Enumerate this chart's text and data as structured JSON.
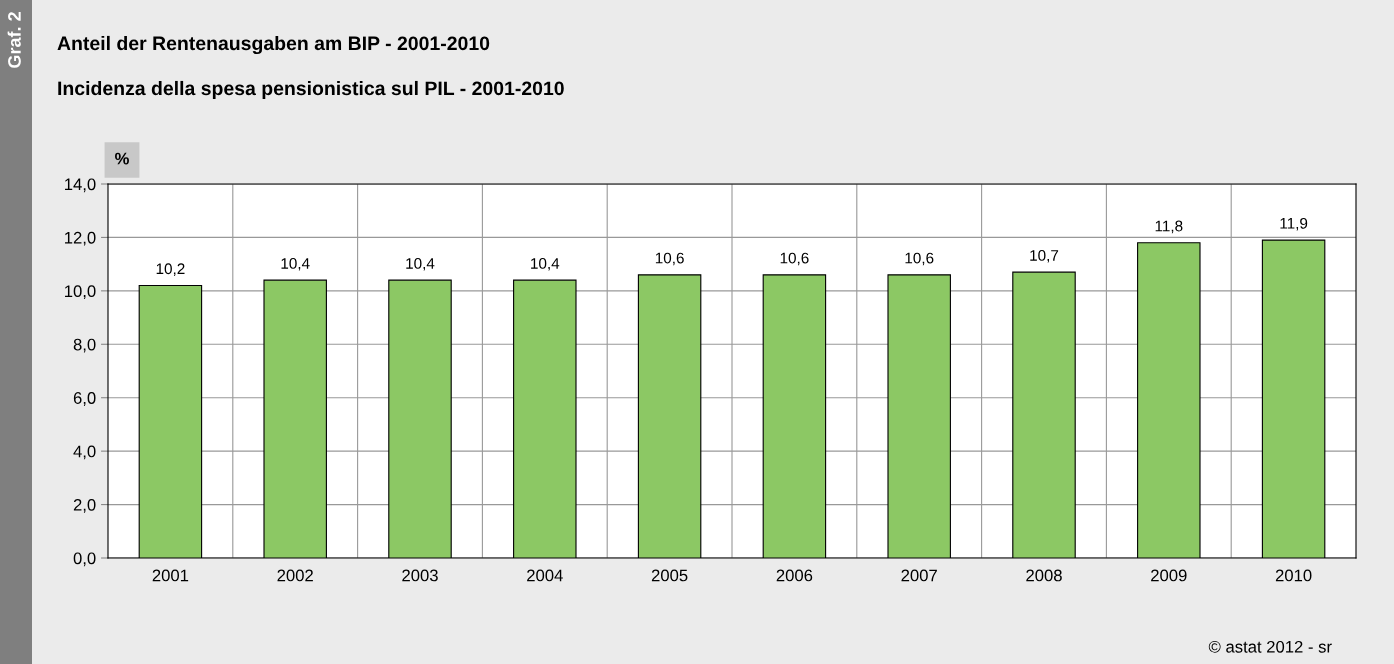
{
  "chart_data": {
    "type": "bar",
    "title": "Anteil der Rentenausgaben am BIP - 2001-2010",
    "subtitle": "Incidenza della spesa pensionistica sul PIL - 2001-2010",
    "ylabel": "%",
    "categories": [
      "2001",
      "2002",
      "2003",
      "2004",
      "2005",
      "2006",
      "2007",
      "2008",
      "2009",
      "2010"
    ],
    "values": [
      10.2,
      10.4,
      10.4,
      10.4,
      10.6,
      10.6,
      10.6,
      10.7,
      11.8,
      11.9
    ],
    "value_labels": [
      "10,2",
      "10,4",
      "10,4",
      "10,4",
      "10,6",
      "10,6",
      "10,6",
      "10,7",
      "11,8",
      "11,9"
    ],
    "color": "#8cc864",
    "ylim": [
      0,
      14
    ],
    "yticks": [
      {
        "value": 0,
        "label": "0,0"
      },
      {
        "value": 2,
        "label": "2,0"
      },
      {
        "value": 4,
        "label": "4,0"
      },
      {
        "value": 6,
        "label": "6,0"
      },
      {
        "value": 8,
        "label": "8,0"
      },
      {
        "value": 10,
        "label": "10,0"
      },
      {
        "value": 12,
        "label": "12,0"
      },
      {
        "value": 14,
        "label": "14,0"
      }
    ],
    "grid": true,
    "annotations": [
      "Graf. 2",
      "© astat 2012 - sr"
    ]
  }
}
